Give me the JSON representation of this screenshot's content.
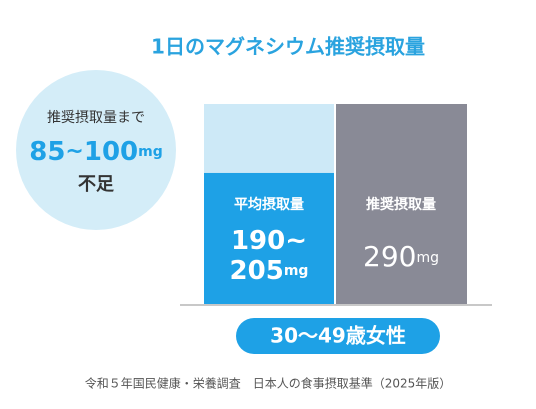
{
  "chart_data": {
    "type": "bar",
    "title": "1日のマグネシウム推奨摂取量",
    "callout": {
      "text": "推奨摂取量まで",
      "min": 85,
      "separator": "~",
      "max": 100,
      "unit": "mg",
      "suffix": "不足"
    },
    "intake": {
      "label": "平均摂取量",
      "min": 190,
      "separator": "~",
      "max": 205,
      "unit": "mg",
      "color": "#1ea1e6",
      "track_color": "#cde9f7"
    },
    "recommended": {
      "label": "推奨摂取量",
      "value": 290,
      "unit": "mg",
      "color": "#898a96"
    },
    "group": "30〜49歳女性",
    "source": "令和５年国民健康・栄養調査　日本人の食事摂取基準（2025年版）"
  }
}
